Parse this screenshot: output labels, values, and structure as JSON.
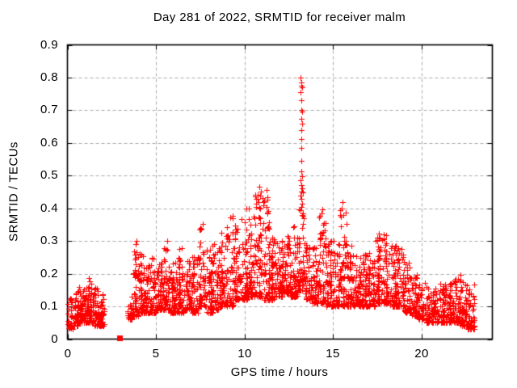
{
  "chart_data": {
    "type": "scatter",
    "title": "Day 281 of 2022, SRMTID for receiver malm",
    "xlabel": "GPS time / hours",
    "ylabel": "SRMTID / TECUs",
    "xlim": [
      0,
      24
    ],
    "ylim": [
      0,
      0.9
    ],
    "xticks": [
      0,
      5,
      10,
      15,
      20
    ],
    "yticks": [
      0,
      0.1,
      0.2,
      0.3,
      0.4,
      0.5,
      0.6,
      0.7,
      0.8,
      0.9
    ],
    "grid": "dashed, at every major tick, behind data",
    "legend": "none",
    "marker": {
      "shape": "plus",
      "size": 7,
      "color": "#ff0000"
    },
    "colors": {
      "background": "#ffffff",
      "border": "#000000",
      "grid": "#aaaaaa",
      "text": "#000000",
      "series": "#ff0000"
    },
    "description": "Dense scatter (~3000 points, 30-s cadence) of SRMTID vs GPS time. Quiet baseline 0.03-0.19 TECU for 0-2.1 h; data gap 2.1-3.4 h with a single near-zero filled-square point at 3.0 h; activity band 0.08-0.3 TECU rising through the day; broad maximum 9-19 h; secondary peak 0.46 near 10.9 h; sharp spike column reaching 0.80 at 13.2 h; decline after 19 h to 0.03-0.18 TECU until data end at 23.0 h.",
    "band_bins": [
      [
        0.0,
        0.3,
        0.03,
        0.13,
        40
      ],
      [
        0.3,
        0.6,
        0.04,
        0.15,
        45
      ],
      [
        0.6,
        0.9,
        0.05,
        0.16,
        45
      ],
      [
        0.9,
        1.2,
        0.05,
        0.17,
        45
      ],
      [
        1.2,
        1.5,
        0.05,
        0.19,
        45
      ],
      [
        1.5,
        1.8,
        0.04,
        0.16,
        42
      ],
      [
        1.8,
        2.1,
        0.04,
        0.14,
        35
      ],
      [
        3.4,
        3.7,
        0.06,
        0.14,
        30
      ],
      [
        3.7,
        4.0,
        0.07,
        0.3,
        45
      ],
      [
        4.0,
        4.3,
        0.08,
        0.27,
        48
      ],
      [
        4.3,
        4.6,
        0.08,
        0.22,
        48
      ],
      [
        4.6,
        5.0,
        0.08,
        0.25,
        55
      ],
      [
        5.0,
        5.4,
        0.09,
        0.24,
        55
      ],
      [
        5.4,
        5.8,
        0.09,
        0.3,
        55
      ],
      [
        5.8,
        6.2,
        0.08,
        0.25,
        55
      ],
      [
        6.2,
        6.6,
        0.08,
        0.28,
        55
      ],
      [
        6.6,
        7.0,
        0.09,
        0.26,
        55
      ],
      [
        7.0,
        7.4,
        0.08,
        0.26,
        55
      ],
      [
        7.4,
        7.8,
        0.1,
        0.35,
        55
      ],
      [
        7.8,
        8.2,
        0.08,
        0.28,
        55
      ],
      [
        8.2,
        8.6,
        0.09,
        0.3,
        55
      ],
      [
        8.6,
        9.0,
        0.1,
        0.33,
        55
      ],
      [
        9.0,
        9.4,
        0.1,
        0.38,
        55
      ],
      [
        9.4,
        9.8,
        0.12,
        0.35,
        55
      ],
      [
        9.8,
        10.2,
        0.12,
        0.4,
        58
      ],
      [
        10.2,
        10.6,
        0.13,
        0.4,
        58
      ],
      [
        10.6,
        11.0,
        0.13,
        0.45,
        58
      ],
      [
        11.0,
        11.4,
        0.12,
        0.44,
        58
      ],
      [
        11.4,
        11.8,
        0.12,
        0.32,
        55
      ],
      [
        11.8,
        12.2,
        0.13,
        0.3,
        55
      ],
      [
        12.2,
        12.6,
        0.14,
        0.32,
        55
      ],
      [
        12.6,
        13.0,
        0.13,
        0.35,
        55
      ],
      [
        13.0,
        13.4,
        0.15,
        0.45,
        50
      ],
      [
        13.4,
        13.8,
        0.12,
        0.3,
        50
      ],
      [
        13.8,
        14.2,
        0.11,
        0.28,
        55
      ],
      [
        14.2,
        14.6,
        0.11,
        0.38,
        55
      ],
      [
        14.6,
        15.0,
        0.1,
        0.3,
        55
      ],
      [
        15.0,
        15.4,
        0.1,
        0.3,
        55
      ],
      [
        15.4,
        15.8,
        0.1,
        0.4,
        55
      ],
      [
        15.8,
        16.2,
        0.1,
        0.28,
        55
      ],
      [
        16.2,
        16.6,
        0.1,
        0.26,
        55
      ],
      [
        16.6,
        17.0,
        0.1,
        0.26,
        55
      ],
      [
        17.0,
        17.4,
        0.1,
        0.28,
        55
      ],
      [
        17.4,
        17.8,
        0.11,
        0.32,
        55
      ],
      [
        17.8,
        18.2,
        0.11,
        0.32,
        55
      ],
      [
        18.2,
        18.6,
        0.1,
        0.3,
        55
      ],
      [
        18.6,
        19.0,
        0.1,
        0.28,
        55
      ],
      [
        19.0,
        19.4,
        0.08,
        0.24,
        50
      ],
      [
        19.4,
        19.8,
        0.07,
        0.2,
        50
      ],
      [
        19.8,
        20.2,
        0.06,
        0.18,
        48
      ],
      [
        20.2,
        20.6,
        0.05,
        0.16,
        48
      ],
      [
        20.6,
        21.0,
        0.05,
        0.16,
        48
      ],
      [
        21.0,
        21.4,
        0.05,
        0.17,
        48
      ],
      [
        21.4,
        21.8,
        0.05,
        0.18,
        48
      ],
      [
        21.8,
        22.2,
        0.05,
        0.2,
        50
      ],
      [
        22.2,
        22.6,
        0.04,
        0.18,
        52
      ],
      [
        22.6,
        23.0,
        0.03,
        0.17,
        52
      ]
    ],
    "peak_points": [
      [
        13.18,
        0.8
      ],
      [
        13.21,
        0.785
      ],
      [
        13.19,
        0.775
      ],
      [
        13.24,
        0.77
      ],
      [
        13.16,
        0.755
      ],
      [
        13.21,
        0.73
      ],
      [
        13.2,
        0.7
      ],
      [
        13.24,
        0.695
      ],
      [
        13.2,
        0.675
      ],
      [
        13.25,
        0.66
      ],
      [
        13.2,
        0.64
      ],
      [
        13.23,
        0.612
      ],
      [
        13.19,
        0.585
      ],
      [
        13.22,
        0.545
      ],
      [
        13.2,
        0.512
      ],
      [
        13.24,
        0.498
      ],
      [
        13.18,
        0.487
      ],
      [
        13.22,
        0.472
      ],
      [
        13.26,
        0.462
      ],
      [
        13.21,
        0.452
      ],
      [
        13.17,
        0.44
      ],
      [
        13.23,
        0.428
      ],
      [
        13.26,
        0.415
      ],
      [
        13.19,
        0.405
      ],
      [
        13.15,
        0.395
      ],
      [
        13.28,
        0.385
      ],
      [
        10.84,
        0.465
      ],
      [
        10.95,
        0.452
      ],
      [
        10.9,
        0.44
      ],
      [
        11.02,
        0.432
      ],
      [
        10.78,
        0.42
      ],
      [
        11.06,
        0.408
      ],
      [
        10.88,
        0.4
      ],
      [
        11.25,
        0.455
      ],
      [
        10.65,
        0.43
      ],
      [
        15.52,
        0.42
      ],
      [
        15.48,
        0.4
      ],
      [
        14.38,
        0.398
      ],
      [
        14.33,
        0.385
      ],
      [
        10.12,
        0.4
      ],
      [
        9.32,
        0.378
      ],
      [
        7.62,
        0.352
      ],
      [
        3.92,
        0.3
      ],
      [
        5.62,
        0.3
      ],
      [
        12.45,
        0.315
      ],
      [
        12.52,
        0.3
      ],
      [
        17.6,
        0.322
      ],
      [
        18.02,
        0.318
      ],
      [
        14.9,
        0.3
      ],
      [
        16.02,
        0.285
      ]
    ],
    "special_points": [
      {
        "x": 2.95,
        "y": 0.004,
        "marker": "filled-square",
        "color": "#ff0000"
      }
    ],
    "data_gap_hours": [
      2.1,
      3.4
    ],
    "seed": 7
  }
}
